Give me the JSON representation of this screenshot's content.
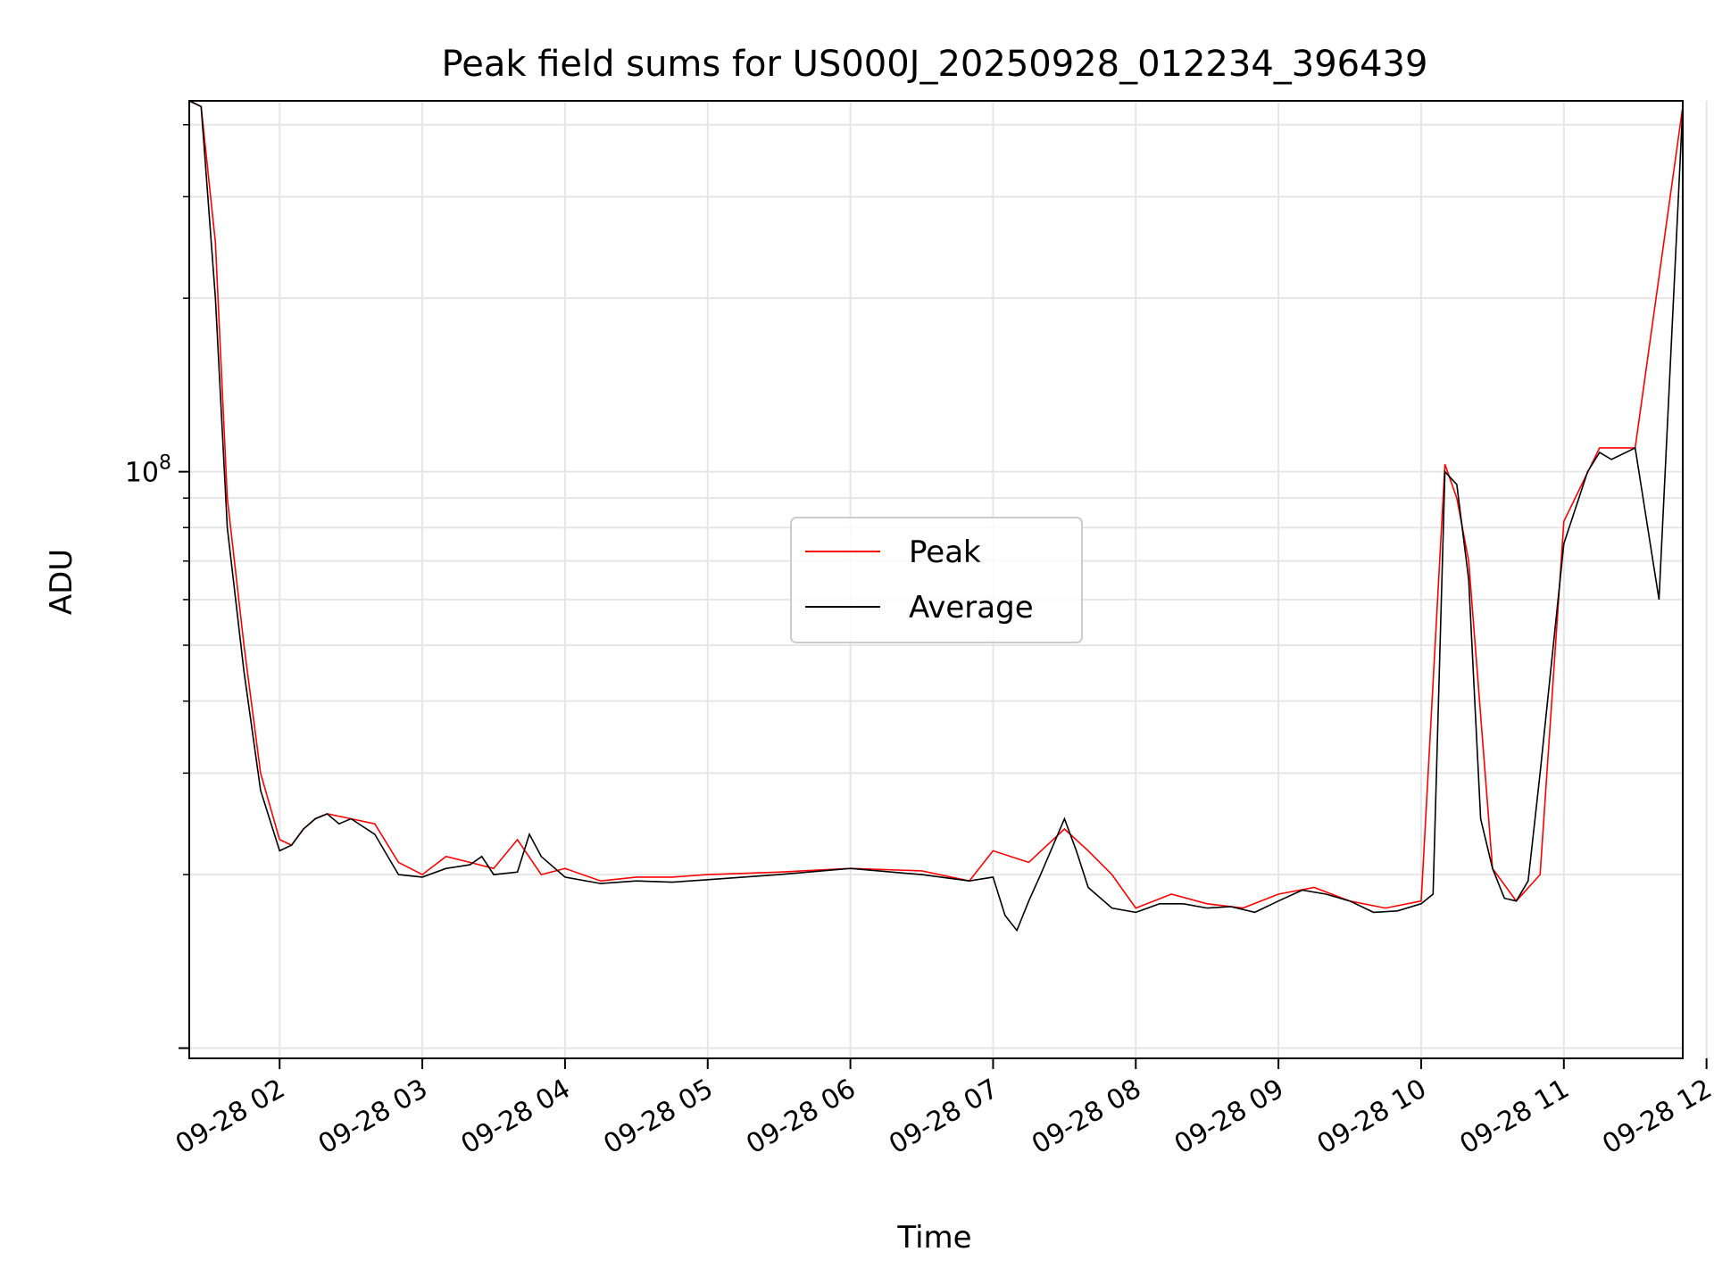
{
  "chart_data": {
    "type": "line",
    "title": "Peak field sums for US000J_20250928_012234_396439",
    "xlabel": "Time",
    "ylabel": "ADU",
    "y_scale": "log",
    "grid": true,
    "legend_placement": "center",
    "xlim": [
      "09-28 01:22",
      "09-28 11:50"
    ],
    "ylim": [
      9600000,
      440000000
    ],
    "x_ticks": [
      "09-28 02",
      "09-28 03",
      "09-28 04",
      "09-28 05",
      "09-28 06",
      "09-28 07",
      "09-28 08",
      "09-28 09",
      "09-28 10",
      "09-28 11",
      "09-28 12"
    ],
    "x_tick_times": [
      "09-28 02:00",
      "09-28 03:00",
      "09-28 04:00",
      "09-28 05:00",
      "09-28 06:00",
      "09-28 07:00",
      "09-28 08:00",
      "09-28 09:00",
      "09-28 10:00",
      "09-28 11:00",
      "09-28 12:00"
    ],
    "y_major_ticks": [
      {
        "base": "10",
        "exp": "8",
        "value": 100000000
      }
    ],
    "series": [
      {
        "name": "Peak",
        "color": "#ff0000",
        "x": [
          "09-28 01:22",
          "09-28 01:27",
          "09-28 01:33",
          "09-28 01:38",
          "09-28 01:45",
          "09-28 01:52",
          "09-28 02:00",
          "09-28 02:05",
          "09-28 02:10",
          "09-28 02:15",
          "09-28 02:20",
          "09-28 02:30",
          "09-28 02:40",
          "09-28 02:50",
          "09-28 03:00",
          "09-28 03:10",
          "09-28 03:20",
          "09-28 03:30",
          "09-28 03:40",
          "09-28 03:50",
          "09-28 04:00",
          "09-28 04:15",
          "09-28 04:30",
          "09-28 04:45",
          "09-28 05:00",
          "09-28 05:30",
          "09-28 06:00",
          "09-28 06:30",
          "09-28 06:50",
          "09-28 07:00",
          "09-28 07:15",
          "09-28 07:30",
          "09-28 07:40",
          "09-28 07:50",
          "09-28 08:00",
          "09-28 08:15",
          "09-28 08:30",
          "09-28 08:45",
          "09-28 09:00",
          "09-28 09:15",
          "09-28 09:30",
          "09-28 09:45",
          "09-28 10:00",
          "09-28 10:10",
          "09-28 10:15",
          "09-28 10:20",
          "09-28 10:30",
          "09-28 10:40",
          "09-28 10:50",
          "09-28 11:00",
          "09-28 11:15",
          "09-28 11:30",
          "09-28 11:50"
        ],
        "y": [
          440000000,
          430000000,
          250000000,
          90000000,
          50000000,
          30000000,
          23000000,
          22500000,
          24000000,
          25000000,
          25500000,
          25000000,
          24500000,
          21000000,
          20000000,
          21500000,
          21000000,
          20500000,
          23000000,
          20000000,
          20500000,
          19500000,
          19800000,
          19800000,
          20000000,
          20200000,
          20500000,
          20300000,
          19500000,
          22000000,
          21000000,
          24000000,
          22000000,
          20000000,
          17500000,
          18500000,
          17800000,
          17500000,
          18500000,
          19000000,
          18000000,
          17500000,
          18000000,
          103000000,
          90000000,
          70000000,
          20500000,
          18000000,
          20000000,
          82000000,
          110000000,
          110000000,
          430000000
        ]
      },
      {
        "name": "Average",
        "color": "#000000",
        "x": [
          "09-28 01:22",
          "09-28 01:27",
          "09-28 01:33",
          "09-28 01:38",
          "09-28 01:45",
          "09-28 01:52",
          "09-28 02:00",
          "09-28 02:05",
          "09-28 02:10",
          "09-28 02:15",
          "09-28 02:20",
          "09-28 02:25",
          "09-28 02:30",
          "09-28 02:40",
          "09-28 02:50",
          "09-28 03:00",
          "09-28 03:10",
          "09-28 03:20",
          "09-28 03:25",
          "09-28 03:30",
          "09-28 03:40",
          "09-28 03:45",
          "09-28 03:50",
          "09-28 04:00",
          "09-28 04:15",
          "09-28 04:30",
          "09-28 04:45",
          "09-28 05:00",
          "09-28 05:30",
          "09-28 06:00",
          "09-28 06:30",
          "09-28 06:50",
          "09-28 07:00",
          "09-28 07:05",
          "09-28 07:10",
          "09-28 07:15",
          "09-28 07:20",
          "09-28 07:30",
          "09-28 07:35",
          "09-28 07:40",
          "09-28 07:50",
          "09-28 08:00",
          "09-28 08:10",
          "09-28 08:20",
          "09-28 08:30",
          "09-28 08:40",
          "09-28 08:50",
          "09-28 09:00",
          "09-28 09:10",
          "09-28 09:20",
          "09-28 09:30",
          "09-28 09:40",
          "09-28 09:50",
          "09-28 10:00",
          "09-28 10:05",
          "09-28 10:10",
          "09-28 10:15",
          "09-28 10:20",
          "09-28 10:25",
          "09-28 10:30",
          "09-28 10:35",
          "09-28 10:40",
          "09-28 10:45",
          "09-28 10:50",
          "09-28 11:00",
          "09-28 11:10",
          "09-28 11:15",
          "09-28 11:20",
          "09-28 11:30",
          "09-28 11:40",
          "09-28 11:50"
        ],
        "y": [
          440000000,
          430000000,
          200000000,
          80000000,
          45000000,
          28000000,
          22000000,
          22500000,
          24000000,
          25000000,
          25500000,
          24500000,
          25000000,
          23500000,
          20000000,
          19800000,
          20500000,
          20800000,
          21500000,
          20000000,
          20200000,
          23500000,
          21500000,
          19800000,
          19300000,
          19500000,
          19400000,
          19600000,
          20000000,
          20500000,
          20000000,
          19500000,
          19800000,
          17000000,
          16000000,
          18000000,
          20000000,
          25000000,
          22000000,
          19000000,
          17500000,
          17200000,
          17800000,
          17800000,
          17500000,
          17600000,
          17200000,
          18000000,
          18800000,
          18500000,
          18000000,
          17200000,
          17300000,
          17800000,
          18500000,
          100000000,
          95000000,
          65000000,
          25000000,
          20500000,
          18200000,
          18000000,
          19500000,
          30000000,
          75000000,
          100000000,
          108000000,
          105000000,
          110000000,
          60000000,
          430000000
        ]
      }
    ]
  }
}
